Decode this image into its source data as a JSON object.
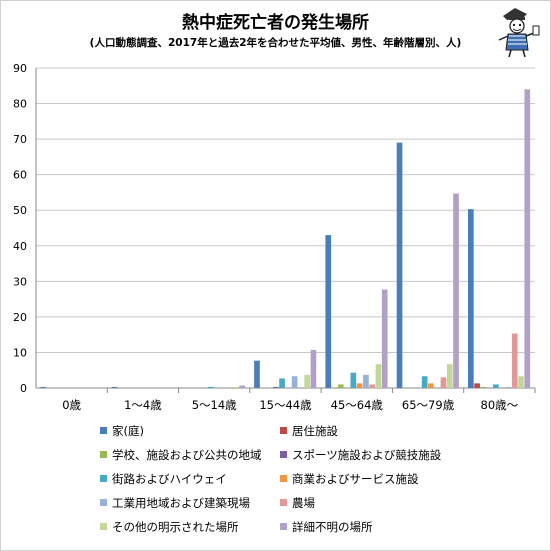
{
  "chart_data": {
    "type": "bar",
    "title": "熱中症死亡者の発生場所",
    "subtitle": "(人口動態調査、2017年と過去2年を合わせた平均値、男性、年齢階層別、人)",
    "categories": [
      "0歳",
      "1〜4歳",
      "5〜14歳",
      "15〜44歳",
      "45〜64歳",
      "65〜79歳",
      "80歳〜"
    ],
    "ylim": [
      0,
      90
    ],
    "yticks": [
      0,
      10,
      20,
      30,
      40,
      50,
      60,
      70,
      80,
      90
    ],
    "grid": true,
    "legend_position": "bottom",
    "series": [
      {
        "name": "家(庭)",
        "color": "#4a7eba",
        "values": [
          0.3,
          0.3,
          0.0,
          7.7,
          43.0,
          69.0,
          50.3
        ]
      },
      {
        "name": "居住施設",
        "color": "#be4b48",
        "values": [
          0.0,
          0.0,
          0.0,
          0.0,
          0.0,
          0.0,
          1.3
        ]
      },
      {
        "name": "学校、施設および公共の地域",
        "color": "#98b954",
        "values": [
          0.0,
          0.0,
          0.0,
          0.0,
          1.0,
          0.0,
          0.3
        ]
      },
      {
        "name": "スポーツ施設および競技施設",
        "color": "#7d60a0",
        "values": [
          0.0,
          0.0,
          0.0,
          0.3,
          0.0,
          0.0,
          0.0
        ]
      },
      {
        "name": "街路およびハイウェイ",
        "color": "#46aac4",
        "values": [
          0.0,
          0.0,
          0.3,
          2.7,
          4.3,
          3.3,
          1.0
        ]
      },
      {
        "name": "商業およびサービス施設",
        "color": "#f49542",
        "values": [
          0.0,
          0.0,
          0.0,
          0.0,
          1.3,
          1.3,
          0.0
        ]
      },
      {
        "name": "工業用地域および建築現場",
        "color": "#97b2d8",
        "values": [
          0.0,
          0.0,
          0.0,
          3.3,
          3.7,
          0.0,
          0.3
        ]
      },
      {
        "name": "農場",
        "color": "#e29896",
        "values": [
          0.0,
          0.0,
          0.0,
          0.0,
          1.0,
          3.0,
          15.3
        ]
      },
      {
        "name": "その他の明示された場所",
        "color": "#c4d79b",
        "values": [
          0.0,
          0.0,
          0.3,
          3.7,
          6.7,
          6.7,
          3.3
        ]
      },
      {
        "name": "詳細不明の場所",
        "color": "#b1a0c7",
        "values": [
          0.0,
          0.0,
          0.7,
          10.7,
          27.7,
          54.7,
          84.0
        ]
      }
    ]
  }
}
